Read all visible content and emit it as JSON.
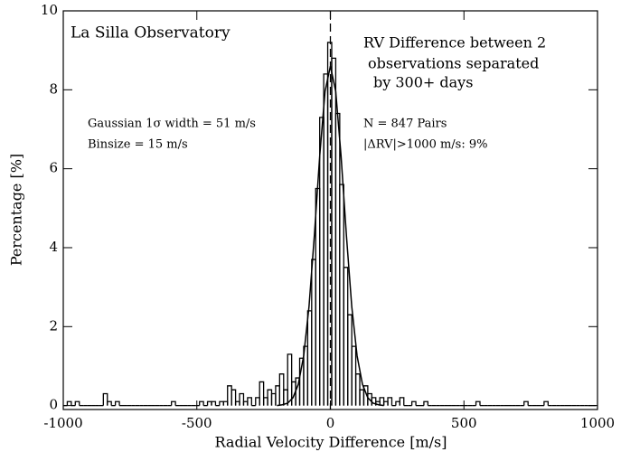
{
  "chart_data": {
    "type": "histogram",
    "xlabel": "Radial Velocity Difference [m/s]",
    "ylabel": "Percentage [%]",
    "annotations": [
      "La Silla Observatory",
      "Gaussian 1σ width = 51 m/s",
      "Binsize = 15 m/s",
      "N = 847 Pairs",
      "|ΔRV|>1000 m/s: 9%"
    ],
    "note_lines": [
      "RV Difference between 2",
      "observations separated",
      "by 300+ days"
    ],
    "xlim": [
      -1000,
      1000
    ],
    "ylim": [
      -0.1,
      10
    ],
    "xticks": [
      -1000,
      -500,
      0,
      500,
      1000
    ],
    "yticks": [
      0,
      2,
      4,
      6,
      8,
      10
    ],
    "vline": 0,
    "color": "#000000",
    "bins": [
      -1000,
      -985,
      -970,
      -955,
      -940,
      -925,
      -910,
      -895,
      -880,
      -865,
      -850,
      -835,
      -820,
      -805,
      -790,
      -775,
      -760,
      -745,
      -730,
      -715,
      -700,
      -685,
      -670,
      -655,
      -640,
      -625,
      -610,
      -595,
      -580,
      -565,
      -550,
      -535,
      -520,
      -505,
      -490,
      -475,
      -460,
      -445,
      -430,
      -415,
      -400,
      -385,
      -370,
      -355,
      -340,
      -325,
      -310,
      -295,
      -280,
      -265,
      -250,
      -235,
      -220,
      -205,
      -190,
      -175,
      -160,
      -145,
      -130,
      -115,
      -100,
      -85,
      -70,
      -55,
      -40,
      -25,
      -10,
      5,
      20,
      35,
      50,
      65,
      80,
      95,
      110,
      125,
      140,
      155,
      170,
      185,
      200,
      215,
      230,
      245,
      260,
      275,
      290,
      305,
      320,
      335,
      350,
      365,
      380,
      395,
      410,
      425,
      440,
      455,
      470,
      485,
      500,
      515,
      530,
      545,
      560,
      575,
      590,
      605,
      620,
      635,
      650,
      665,
      680,
      695,
      710,
      725,
      740,
      755,
      770,
      785,
      800,
      815,
      830,
      845,
      860,
      875,
      890,
      905,
      920,
      935,
      950,
      965,
      980,
      995
    ],
    "values": [
      0,
      0.1,
      0,
      0.1,
      0,
      0,
      0,
      0,
      0,
      0,
      0.3,
      0.1,
      0,
      0.1,
      0,
      0,
      0,
      0,
      0,
      0,
      0,
      0,
      0,
      0,
      0,
      0,
      0,
      0.1,
      0,
      0,
      0,
      0,
      0,
      0,
      0.1,
      0,
      0.1,
      0.1,
      0,
      0.1,
      0.1,
      0.5,
      0.4,
      0.1,
      0.3,
      0.1,
      0.2,
      0,
      0.2,
      0.6,
      0.2,
      0.4,
      0.3,
      0.5,
      0.8,
      0.4,
      1.3,
      0.6,
      0.7,
      1.2,
      1.5,
      2.4,
      3.7,
      5.5,
      7.3,
      8.4,
      9.2,
      8.8,
      7.4,
      5.6,
      3.5,
      2.3,
      1.5,
      0.8,
      0.4,
      0.5,
      0.3,
      0.2,
      0.1,
      0.2,
      0.1,
      0.2,
      0,
      0.1,
      0.2,
      0,
      0,
      0.1,
      0,
      0,
      0.1,
      0,
      0,
      0,
      0,
      0,
      0,
      0,
      0,
      0,
      0,
      0,
      0,
      0.1,
      0,
      0,
      0,
      0,
      0,
      0,
      0,
      0,
      0,
      0,
      0,
      0.1,
      0,
      0,
      0,
      0,
      0.1,
      0,
      0,
      0,
      0,
      0,
      0,
      0,
      0,
      0,
      0,
      0,
      0
    ],
    "fit": {
      "x": [
        -200,
        -180,
        -160,
        -140,
        -120,
        -100,
        -80,
        -60,
        -40,
        -20,
        0,
        20,
        40,
        60,
        80,
        100,
        120,
        140,
        160,
        180,
        200
      ],
      "values": [
        0,
        0.02,
        0.06,
        0.2,
        0.54,
        1.26,
        2.51,
        4.31,
        6.32,
        7.96,
        8.6,
        7.96,
        6.32,
        4.31,
        2.51,
        1.26,
        0.54,
        0.2,
        0.06,
        0.02,
        0
      ]
    }
  }
}
